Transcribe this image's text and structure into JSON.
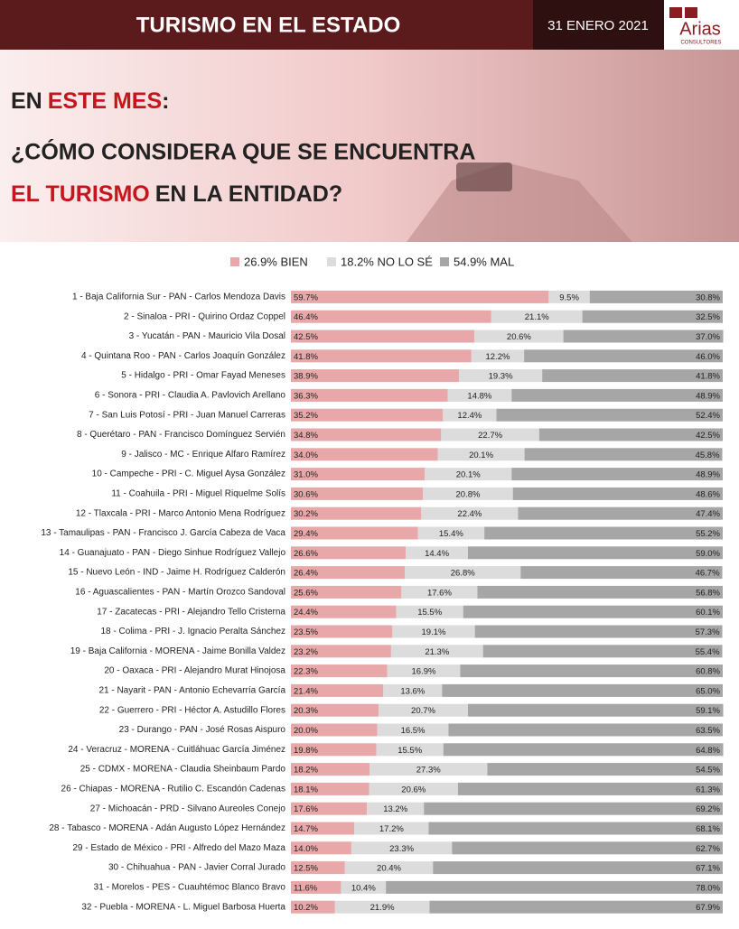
{
  "header": {
    "title": "TURISMO EN EL ESTADO",
    "date": "31 ENERO 2021",
    "logo": "Arias",
    "logo_sub": "CONSULTORES"
  },
  "question": [
    [
      "EN",
      "ESTE MES",
      ":"
    ],
    [
      "¿CÓMO CONSIDERA QUE SE ENCUENTRA"
    ],
    [
      "EL TURISMO",
      "EN LA ENTIDAD?"
    ]
  ],
  "chart_data": {
    "type": "bar",
    "orientation": "horizontal",
    "stacked": true,
    "xlim": [
      0,
      100
    ],
    "categories": [
      "1 - Baja California Sur - PAN  - Carlos Mendoza Davis",
      "2 - Sinaloa - PRI - Quirino Ordaz Coppel",
      "3 - Yucatán - PAN - Mauricio Vila Dosal",
      "4 - Quintana Roo - PAN - Carlos Joaquín González",
      "5 - Hidalgo - PRI - Omar Fayad Meneses",
      "6 - Sonora - PRI - Claudia A. Pavlovich Arellano",
      "7 - San Luis Potosí - PRI - Juan Manuel Carreras",
      "8 - Querétaro - PAN - Francisco Domínguez Servién",
      "9 - Jalisco - MC - Enrique Alfaro Ramírez",
      "10 - Campeche - PRI - C. Miguel Aysa González",
      "11 - Coahuila - PRI - Miguel Riquelme Solís",
      "12 - Tlaxcala - PRI - Marco Antonio Mena Rodríguez",
      "13 - Tamaulipas - PAN - Francisco J. García Cabeza de Vaca",
      "14 - Guanajuato - PAN - Diego Sinhue Rodríguez Vallejo",
      "15 - Nuevo León - IND - Jaime H. Rodríguez Calderón",
      "16 - Aguascalientes - PAN - Martín Orozco Sandoval",
      "17 - Zacatecas - PRI - Alejandro Tello Cristerna",
      "18 - Colima - PRI - J. Ignacio Peralta Sánchez",
      "19 - Baja California - MORENA - Jaime Bonilla Valdez",
      "20 - Oaxaca - PRI - Alejandro Murat Hinojosa",
      "21 - Nayarit - PAN - Antonio Echevarría García",
      "22 - Guerrero - PRI - Héctor A. Astudillo Flores",
      "23 - Durango - PAN - José Rosas Aispuro",
      "24 - Veracruz - MORENA - Cuitláhuac García Jiménez",
      "25 - CDMX - MORENA - Claudia Sheinbaum Pardo",
      "26 - Chiapas - MORENA - Rutilio C. Escandón Cadenas",
      "27 - Michoacán - PRD - Silvano Aureoles Conejo",
      "28 - Tabasco - MORENA - Adán Augusto López Hernández",
      "29 - Estado de México - PRI - Alfredo del Mazo Maza",
      "30 - Chihuahua - PAN - Javier Corral Jurado",
      "31 - Morelos - PES - Cuauhtémoc Blanco Bravo",
      "32 - Puebla - MORENA - L. Miguel Barbosa Huerta"
    ],
    "series": [
      {
        "name": "26.9% BIEN",
        "color": "#e8a7a8",
        "values": [
          59.7,
          46.4,
          42.5,
          41.8,
          38.9,
          36.3,
          35.2,
          34.8,
          34.0,
          31.0,
          30.6,
          30.2,
          29.4,
          26.6,
          26.4,
          25.6,
          24.4,
          23.5,
          23.2,
          22.3,
          21.4,
          20.3,
          20.0,
          19.8,
          18.2,
          18.1,
          17.6,
          14.7,
          14.0,
          12.5,
          11.6,
          10.2
        ],
        "value_labels": [
          "59.7%",
          "46.4%",
          "42.5%",
          "41.8%",
          "38.9%",
          "36.3%",
          "35.2%",
          "34.8%",
          "34.0%",
          "31.0%",
          "30.6%",
          "30.2%",
          "29.4%",
          "26.6%",
          "26.4%",
          "25.6%",
          "24.4%",
          "23.5%",
          "23.2%",
          "22.3%",
          "21.4%",
          "20.3%",
          "20.0%",
          "19.8%",
          "18.2%",
          "18.1%",
          "17.6%",
          "14.7%",
          "14.0%",
          "12.5%",
          "11.6%",
          "10.2%"
        ]
      },
      {
        "name": "18.2% NO LO SÉ",
        "color": "#dcdcdc",
        "values": [
          9.5,
          21.1,
          20.6,
          12.2,
          19.3,
          14.8,
          12.4,
          22.7,
          20.1,
          20.1,
          20.8,
          22.4,
          15.4,
          14.4,
          26.8,
          17.6,
          15.5,
          19.1,
          21.3,
          16.9,
          13.6,
          20.7,
          16.5,
          15.5,
          27.3,
          20.6,
          13.2,
          17.2,
          23.3,
          20.4,
          10.4,
          21.9
        ],
        "value_labels": [
          "9.5%",
          "21.1%",
          "20.6%",
          "12.2%",
          "19.3%",
          "14.8%",
          "12.4%",
          "22.7%",
          "20.1%",
          "20.1%",
          "20.8%",
          "22.4%",
          "15.4%",
          "14.4%",
          "26.8%",
          "17.6%",
          "15.5%",
          "19.1%",
          "21.3%",
          "16.9%",
          "13.6%",
          "20.7%",
          "16.5%",
          "15.5%",
          "27.3%",
          "20.6%",
          "13.2%",
          "17.2%",
          "23.3%",
          "20.4%",
          "10.4%",
          "21.9%"
        ]
      },
      {
        "name": "54.9% MAL",
        "color": "#a6a6a6",
        "values": [
          30.8,
          32.5,
          37.0,
          46.0,
          41.8,
          48.9,
          52.4,
          42.5,
          45.8,
          48.9,
          48.6,
          47.4,
          55.2,
          59.0,
          46.7,
          56.8,
          60.1,
          57.3,
          55.4,
          60.8,
          65.0,
          59.1,
          63.5,
          64.8,
          54.5,
          61.3,
          69.2,
          68.1,
          62.7,
          67.1,
          78.0,
          67.9
        ],
        "value_labels": [
          "30.8%",
          "32.5%",
          "37.0%",
          "46.0%",
          "41.8%",
          "48.9%",
          "52.4%",
          "42.5%",
          "45.8%",
          "48.9%",
          "48.6%",
          "47.4%",
          "55.2%",
          "59.0%",
          "46.7%",
          "56.8%",
          "60.1%",
          "57.3%",
          "55.4%",
          "60.8%",
          "65.0%",
          "59.1%",
          "63.5%",
          "64.8%",
          "54.5%",
          "61.3%",
          "69.2%",
          "68.1%",
          "62.7%",
          "67.1%",
          "78.0%",
          "67.9%"
        ]
      }
    ]
  }
}
